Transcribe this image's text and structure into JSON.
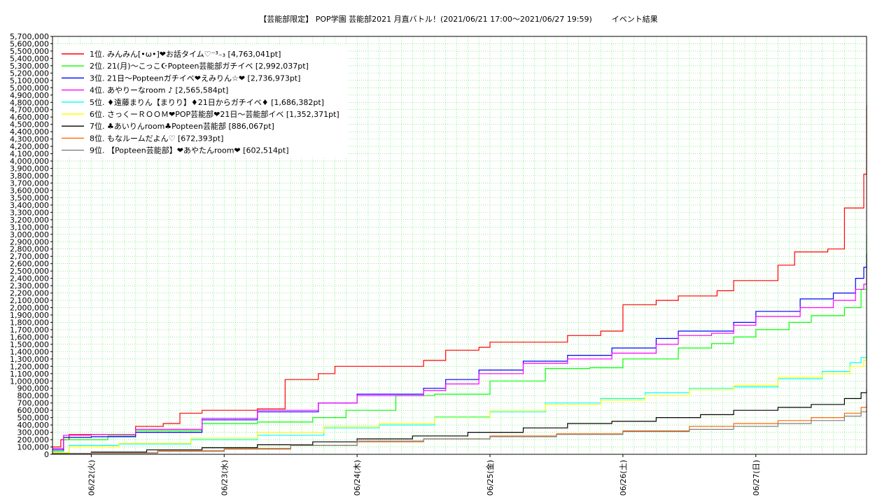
{
  "chart_data": {
    "type": "line",
    "title": "【芸能部限定】 POP学園 芸能部2021 月直バトル！(2021/06/21 17:00〜2021/06/27 19:59)        イベント結果",
    "xlabel": "",
    "ylabel": "",
    "ylim": [
      0,
      5700000
    ],
    "ytick_step": 100000,
    "y_tick_labels": [
      "0",
      "100,000",
      "200,000",
      "300,000",
      "400,000",
      "500,000",
      "600,000",
      "700,000",
      "800,000",
      "900,000",
      "1,000,000",
      "1,100,000",
      "1,200,000",
      "1,300,000",
      "1,400,000",
      "1,500,000",
      "1,600,000",
      "1,700,000",
      "1,800,000",
      "1,900,000",
      "2,000,000",
      "2,100,000",
      "2,200,000",
      "2,300,000",
      "2,400,000",
      "2,500,000",
      "2,600,000",
      "2,700,000",
      "2,800,000",
      "2,900,000",
      "3,000,000",
      "3,100,000",
      "3,200,000",
      "3,300,000",
      "3,400,000",
      "3,500,000",
      "3,600,000",
      "3,700,000",
      "3,800,000",
      "3,900,000",
      "4,000,000",
      "4,100,000",
      "4,200,000",
      "4,300,000",
      "4,400,000",
      "4,500,000",
      "4,600,000",
      "4,700,000",
      "4,800,000",
      "4,900,000",
      "5,000,000",
      "5,100,000",
      "5,200,000",
      "5,300,000",
      "5,400,000",
      "5,500,000",
      "5,600,000",
      "5,700,000"
    ],
    "xlim": [
      "06/21 17:00",
      "06/27 20:00"
    ],
    "x_tick_labels": [
      "06/22(火)",
      "06/23(水)",
      "06/24(木)",
      "06/25(金)",
      "06/26(土)",
      "06/27(日)"
    ],
    "grid": true,
    "legend_position": "top-left",
    "series": [
      {
        "name": "1位. みんみん[•ω•]❤お話タイム♡⁻³₋₃ [4,763,041pt]",
        "color": "#ff0000",
        "x": [
          "06/21 17:00",
          "06/21 18:30",
          "06/21 20:00",
          "06/22 00:00",
          "06/22 08:00",
          "06/22 13:00",
          "06/22 16:00",
          "06/22 20:00",
          "06/23 06:00",
          "06/23 11:00",
          "06/23 11:05",
          "06/23 17:00",
          "06/23 20:00",
          "06/24 06:00",
          "06/24 12:00",
          "06/24 16:00",
          "06/24 22:00",
          "06/25 00:00",
          "06/25 10:00",
          "06/25 14:00",
          "06/25 20:00",
          "06/26 00:00",
          "06/26 06:00",
          "06/26 10:00",
          "06/26 14:00",
          "06/26 17:00",
          "06/26 20:00",
          "06/27 04:00",
          "06/27 07:00",
          "06/27 10:00",
          "06/27 13:00",
          "06/27 16:00",
          "06/27 19:30",
          "06/27 20:00"
        ],
        "values": [
          100000,
          200000,
          270000,
          270000,
          380000,
          420000,
          560000,
          600000,
          620000,
          1020000,
          1020000,
          1100000,
          1200000,
          1200000,
          1280000,
          1420000,
          1460000,
          1530000,
          1530000,
          1620000,
          1680000,
          2040000,
          2100000,
          2160000,
          2160000,
          2230000,
          2370000,
          2580000,
          2760000,
          2760000,
          2800000,
          3360000,
          3820000,
          4763041
        ]
      },
      {
        "name": "2位. 21(月)〜こっこ☪Popteen芸能部ガチイベ [2,992,037pt]",
        "color": "#00ff00",
        "x": [
          "06/21 17:00",
          "06/21 19:00",
          "06/22 03:00",
          "06/22 08:00",
          "06/22 20:00",
          "06/23 06:00",
          "06/23 16:00",
          "06/23 22:00",
          "06/24 07:00",
          "06/24 14:00",
          "06/25 00:00",
          "06/25 10:00",
          "06/25 18:00",
          "06/26 00:00",
          "06/26 10:00",
          "06/26 16:00",
          "06/26 20:00",
          "06/27 00:00",
          "06/27 06:00",
          "06/27 10:00",
          "06/27 16:00",
          "06/27 19:00",
          "06/27 20:00"
        ],
        "values": [
          40000,
          200000,
          250000,
          320000,
          420000,
          440000,
          500000,
          600000,
          800000,
          820000,
          1000000,
          1170000,
          1180000,
          1300000,
          1450000,
          1510000,
          1600000,
          1700000,
          1800000,
          1890000,
          2000000,
          2250000,
          2992037
        ]
      },
      {
        "name": "3位. 21日〜Popteenガチイベ❤えみりん☆❤ [2,736,973pt]",
        "color": "#0000ff",
        "x": [
          "06/21 17:00",
          "06/21 19:00",
          "06/22 00:00",
          "06/22 08:00",
          "06/22 20:00",
          "06/23 06:00",
          "06/23 17:00",
          "06/24 00:00",
          "06/24 12:00",
          "06/24 16:00",
          "06/24 22:00",
          "06/25 06:00",
          "06/25 14:00",
          "06/25 22:00",
          "06/26 06:00",
          "06/26 10:00",
          "06/26 16:00",
          "06/26 20:00",
          "06/27 00:00",
          "06/27 08:00",
          "06/27 14:00",
          "06/27 18:00",
          "06/27 19:30",
          "06/27 20:00"
        ],
        "values": [
          60000,
          230000,
          240000,
          300000,
          470000,
          580000,
          700000,
          820000,
          900000,
          1020000,
          1150000,
          1270000,
          1350000,
          1450000,
          1580000,
          1680000,
          1680000,
          1800000,
          1950000,
          2120000,
          2200000,
          2400000,
          2550000,
          2736973
        ]
      },
      {
        "name": "4位. あやりーなroom ♪ [2,565,584pt]",
        "color": "#ff00ff",
        "x": [
          "06/21 17:00",
          "06/21 19:00",
          "06/22 00:00",
          "06/22 08:00",
          "06/22 20:00",
          "06/23 06:00",
          "06/23 17:00",
          "06/24 00:00",
          "06/24 12:00",
          "06/24 16:00",
          "06/24 22:00",
          "06/25 06:00",
          "06/25 14:00",
          "06/25 22:00",
          "06/26 06:00",
          "06/26 10:00",
          "06/26 16:00",
          "06/26 20:00",
          "06/27 00:00",
          "06/27 08:00",
          "06/27 14:00",
          "06/27 18:00",
          "06/27 19:30",
          "06/27 20:00"
        ],
        "values": [
          80000,
          260000,
          270000,
          340000,
          490000,
          600000,
          700000,
          800000,
          870000,
          960000,
          1100000,
          1240000,
          1300000,
          1380000,
          1500000,
          1620000,
          1650000,
          1760000,
          1880000,
          2000000,
          2100000,
          2250000,
          2320000,
          2565584
        ]
      },
      {
        "name": "5位. ♦遠藤まりん【まりり】♦21日からガチイベ♦ [1,686,382pt]",
        "color": "#00ffff",
        "x": [
          "06/21 17:00",
          "06/21 20:00",
          "06/22 05:00",
          "06/22 18:00",
          "06/23 06:00",
          "06/23 18:00",
          "06/24 04:00",
          "06/24 14:00",
          "06/25 00:00",
          "06/25 10:00",
          "06/25 20:00",
          "06/26 04:00",
          "06/26 12:00",
          "06/26 20:00",
          "06/27 04:00",
          "06/27 12:00",
          "06/27 17:00",
          "06/27 19:00",
          "06/27 20:00"
        ],
        "values": [
          20000,
          120000,
          140000,
          200000,
          260000,
          360000,
          400000,
          510000,
          580000,
          700000,
          760000,
          840000,
          900000,
          920000,
          1030000,
          1130000,
          1250000,
          1320000,
          1686382
        ]
      },
      {
        "name": "6位. さっくーＲＯＯＭ❤POP芸能部❤21日〜芸能部イベ [1,352,371pt]",
        "color": "#ffff00",
        "x": [
          "06/21 17:00",
          "06/21 20:00",
          "06/22 05:00",
          "06/22 18:00",
          "06/23 06:00",
          "06/23 18:00",
          "06/24 04:00",
          "06/24 14:00",
          "06/25 00:00",
          "06/25 10:00",
          "06/25 20:00",
          "06/26 04:00",
          "06/26 12:00",
          "06/26 20:00",
          "06/27 04:00",
          "06/27 12:00",
          "06/27 17:00",
          "06/27 19:30",
          "06/27 20:00"
        ],
        "values": [
          20000,
          100000,
          150000,
          220000,
          300000,
          380000,
          420000,
          500000,
          600000,
          680000,
          740000,
          800000,
          880000,
          940000,
          1050000,
          1100000,
          1200000,
          1280000,
          1352371
        ]
      },
      {
        "name": "7位. ♣あいりんroom♣Popteen芸能部 [886,067pt]",
        "color": "#000000",
        "x": [
          "06/21 17:00",
          "06/22 00:00",
          "06/22 10:00",
          "06/22 20:00",
          "06/23 06:00",
          "06/23 16:00",
          "06/24 00:00",
          "06/24 10:00",
          "06/24 20:00",
          "06/25 06:00",
          "06/25 14:00",
          "06/25 22:00",
          "06/26 06:00",
          "06/26 14:00",
          "06/26 20:00",
          "06/27 04:00",
          "06/27 10:00",
          "06/27 16:00",
          "06/27 19:00",
          "06/27 20:00"
        ],
        "values": [
          10000,
          30000,
          60000,
          90000,
          130000,
          170000,
          210000,
          250000,
          300000,
          360000,
          420000,
          450000,
          500000,
          540000,
          600000,
          640000,
          680000,
          760000,
          840000,
          886067
        ]
      },
      {
        "name": "8位. もなルームだよん♡ [672,393pt]",
        "color": "#ff6600",
        "x": [
          "06/21 17:00",
          "06/22 00:00",
          "06/22 12:00",
          "06/23 00:00",
          "06/23 12:00",
          "06/24 00:00",
          "06/24 12:00",
          "06/25 00:00",
          "06/25 12:00",
          "06/26 00:00",
          "06/26 12:00",
          "06/26 20:00",
          "06/27 04:00",
          "06/27 10:00",
          "06/27 16:00",
          "06/27 19:00",
          "06/27 20:00"
        ],
        "values": [
          5000,
          20000,
          50000,
          80000,
          120000,
          170000,
          210000,
          250000,
          280000,
          320000,
          380000,
          420000,
          460000,
          500000,
          560000,
          640000,
          672393
        ]
      },
      {
        "name": "9位. 【Popteen芸能部】❤あやたんroom❤ [602,514pt]",
        "color": "#808080",
        "x": [
          "06/21 17:00",
          "06/22 00:00",
          "06/22 12:00",
          "06/23 00:00",
          "06/23 12:00",
          "06/24 00:00",
          "06/24 12:00",
          "06/25 00:00",
          "06/25 12:00",
          "06/26 00:00",
          "06/26 12:00",
          "06/26 20:00",
          "06/27 04:00",
          "06/27 10:00",
          "06/27 16:00",
          "06/27 19:00",
          "06/27 20:00"
        ],
        "values": [
          5000,
          15000,
          40000,
          70000,
          120000,
          180000,
          210000,
          240000,
          270000,
          310000,
          340000,
          380000,
          420000,
          460000,
          520000,
          580000,
          602514
        ]
      }
    ]
  }
}
